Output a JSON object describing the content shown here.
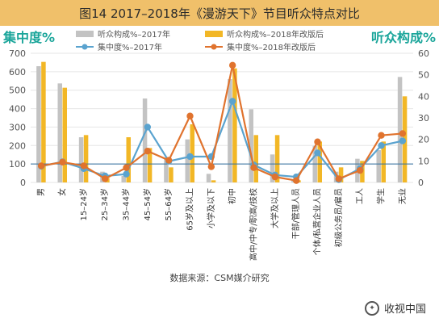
{
  "title": "图14  2017–2018年《漫游天下》节目听众特点对比",
  "source": "数据来源：CSM媒介研究",
  "watermark": "收视中国",
  "chart_data": {
    "type": "bar",
    "left_axis_label": "集中度%",
    "right_axis_label": "听众构成%",
    "left_ylim": [
      0,
      700
    ],
    "left_ticks": [
      0,
      100,
      200,
      300,
      400,
      500,
      600,
      700
    ],
    "right_ylim": [
      0,
      60
    ],
    "right_ticks": [
      0,
      10,
      20,
      30,
      40,
      50,
      60
    ],
    "reference_line": 100,
    "categories": [
      "男",
      "女",
      "15–24岁",
      "25–34岁",
      "35–44岁",
      "45–54岁",
      "55–64岁",
      "65岁及以上",
      "小学及以下",
      "初中",
      "高中/中专/职高/技校",
      "大学及以上",
      "干部/管理人员",
      "个体/私营企业人员",
      "初级公务员/雇员",
      "工人",
      "学生",
      "无业"
    ],
    "series": [
      {
        "name": "听众构成%–2017年",
        "kind": "bar",
        "axis": "right",
        "color": "#c3c3c3",
        "values": [
          54,
          46,
          21,
          5,
          3,
          39,
          11,
          20,
          4,
          48,
          34,
          13,
          1,
          17,
          5,
          11,
          15,
          49
        ]
      },
      {
        "name": "听众构成%–2018年改版后",
        "kind": "bar",
        "axis": "right",
        "color": "#f2b726",
        "values": [
          56,
          44,
          22,
          2,
          21,
          16,
          7,
          27,
          1,
          53,
          22,
          22,
          1,
          19,
          7,
          10,
          19,
          40
        ]
      },
      {
        "name": "集中度%–2017年",
        "kind": "line",
        "axis": "left",
        "color": "#5aa3cf",
        "values": [
          88,
          112,
          75,
          35,
          45,
          300,
          115,
          140,
          140,
          440,
          95,
          40,
          30,
          160,
          15,
          75,
          200,
          225
        ]
      },
      {
        "name": "集中度%–2018年改版后",
        "kind": "line",
        "axis": "left",
        "color": "#e0732e",
        "values": [
          90,
          110,
          90,
          20,
          80,
          170,
          120,
          360,
          85,
          635,
          80,
          30,
          10,
          220,
          20,
          65,
          255,
          265
        ]
      }
    ]
  }
}
